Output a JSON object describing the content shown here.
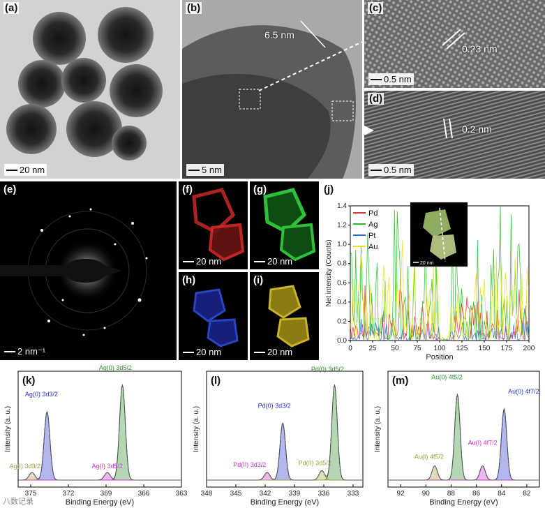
{
  "panels": {
    "a": {
      "label": "(a)",
      "scale": "20 nm"
    },
    "b": {
      "label": "(b)",
      "scale": "5 nm",
      "measure": "6.5 nm"
    },
    "c": {
      "label": "(c)",
      "scale": "0.5 nm",
      "measure": "0.23 nm"
    },
    "d": {
      "label": "(d)",
      "scale": "0.5 nm",
      "measure": "0.2 nm"
    },
    "e": {
      "label": "(e)",
      "scale": "2 nm⁻¹"
    },
    "f": {
      "label": "(f)",
      "scale": "20 nm",
      "color": "#d42a2a"
    },
    "g": {
      "label": "(g)",
      "scale": "20 nm",
      "color": "#2fbf3a"
    },
    "h": {
      "label": "(h)",
      "scale": "20 nm",
      "color": "#2b46c2"
    },
    "i": {
      "label": "(i)",
      "scale": "20 nm",
      "color": "#c7b42a"
    },
    "j": {
      "label": "(j)",
      "inset_scale": "20 nm"
    },
    "k": {
      "label": "(k)"
    },
    "l": {
      "label": "(l)"
    },
    "m": {
      "label": "(m)"
    }
  },
  "chart_data": [
    {
      "type": "line",
      "panel": "j",
      "xlabel": "Position",
      "ylabel": "Net intensity (Counts)",
      "xlim": [
        0,
        200
      ],
      "ylim": [
        0,
        1.4
      ],
      "xticks": [
        "0",
        "25",
        "50",
        "75",
        "100",
        "125",
        "150",
        "175",
        "200"
      ],
      "yticks": [
        "0.0",
        "0.2",
        "0.4",
        "0.6",
        "0.8",
        "1.0",
        "1.2",
        "1.4"
      ],
      "legend_position": "top-left",
      "series": [
        {
          "name": "Pd",
          "color": "#e03030",
          "typical_max": 0.45
        },
        {
          "name": "Ag",
          "color": "#22c022",
          "typical_max": 1.15
        },
        {
          "name": "Pt",
          "color": "#2f6fd0",
          "typical_max": 0.2
        },
        {
          "name": "Au",
          "color": "#e8e020",
          "typical_max": 0.85
        }
      ]
    },
    {
      "type": "line",
      "panel": "k",
      "xlabel": "Binding Energy (eV)",
      "ylabel": "Intensity (a. u.)",
      "xlim": [
        376,
        363
      ],
      "xticks": [
        "375",
        "372",
        "369",
        "366",
        "363"
      ],
      "peaks": [
        {
          "name": "Ag(0) 3d3/2",
          "center": 373.7,
          "height": 0.72,
          "color": "#2233cc"
        },
        {
          "name": "Ag(0) 3d5/2",
          "center": 367.7,
          "height": 1.0,
          "color": "#2e8b2e"
        },
        {
          "name": "Ag(I) 3d3/2",
          "center": 374.9,
          "height": 0.08,
          "color": "#a0a040"
        },
        {
          "name": "Ag(I) 3d5/2",
          "center": 368.9,
          "height": 0.08,
          "color": "#cc33cc"
        }
      ]
    },
    {
      "type": "line",
      "panel": "l",
      "xlabel": "Binding Energy (eV)",
      "ylabel": "Intensity (a. u.)",
      "xlim": [
        348,
        332
      ],
      "xticks": [
        "348",
        "345",
        "342",
        "339",
        "336",
        "333"
      ],
      "peaks": [
        {
          "name": "Pd(0) 3d3/2",
          "center": 340.2,
          "height": 0.6,
          "color": "#2233cc"
        },
        {
          "name": "Pd(0) 3d5/2",
          "center": 334.9,
          "height": 1.0,
          "color": "#2e8b2e"
        },
        {
          "name": "Pd(II) 3d3/2",
          "center": 341.8,
          "height": 0.08,
          "color": "#cc33cc"
        },
        {
          "name": "Pd(II) 3d5/2",
          "center": 336.2,
          "height": 0.1,
          "color": "#a0a040"
        }
      ]
    },
    {
      "type": "line",
      "panel": "m",
      "xlabel": "Binding Energy (eV)",
      "ylabel": "Intensity (a. u.)",
      "xlim": [
        93,
        81
      ],
      "xticks": [
        "92",
        "90",
        "88",
        "86",
        "84",
        "82"
      ],
      "peaks": [
        {
          "name": "Au(0) 4f5/2",
          "center": 87.5,
          "height": 0.9,
          "color": "#2e8b2e"
        },
        {
          "name": "Au(0) 4f7/2",
          "center": 83.8,
          "height": 0.75,
          "color": "#2233cc"
        },
        {
          "name": "Au(I) 4f5/2",
          "center": 89.3,
          "height": 0.15,
          "color": "#a0a040"
        },
        {
          "name": "Au(I) 4f7/2",
          "center": 85.5,
          "height": 0.15,
          "color": "#cc33cc"
        }
      ]
    }
  ],
  "watermark": "八数记录"
}
